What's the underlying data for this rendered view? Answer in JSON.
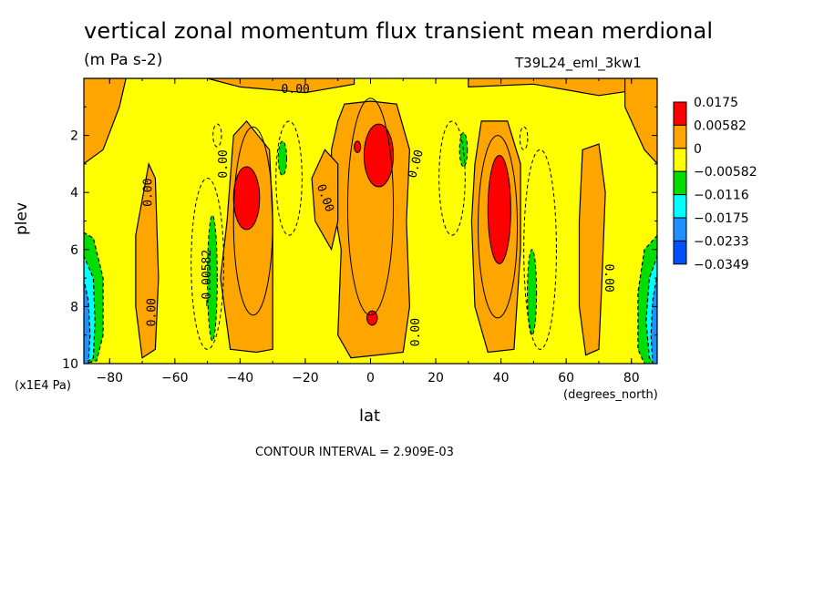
{
  "title": "vertical zonal momentum flux transient mean merdional",
  "units": "(m Pa s-2)",
  "dataset": "T39L24_eml_3kw1",
  "contour_interval_text": "CONTOUR INTERVAL = 2.909E-03",
  "chart_data": {
    "type": "heatmap",
    "xlabel": "lat",
    "xunit": "(degrees_north)",
    "ylabel": "plev",
    "yunit": "(x1E4 Pa)",
    "xlim": [
      -87.9,
      87.9
    ],
    "ylim": [
      10,
      0
    ],
    "x_ticks": [
      -80,
      -60,
      -40,
      -20,
      0,
      20,
      40,
      60,
      80
    ],
    "y_ticks": [
      2,
      4,
      6,
      8,
      10
    ],
    "legend": {
      "position": "right",
      "labels": [
        "0.0175",
        "0.00582",
        "0",
        "−0.00582",
        "−0.0116",
        "−0.0175",
        "−0.0233",
        "−0.0349"
      ],
      "colors": [
        "#ff0000",
        "#ffa500",
        "#ffff00",
        "#00dd00",
        "#00ffff",
        "#1e90ff",
        "#0050ff"
      ]
    },
    "contour_labels": [
      {
        "text": "0.00",
        "lat": -23,
        "plev": 0.4,
        "angle": 0
      },
      {
        "text": "0.00",
        "lat": -68,
        "plev": 4.0,
        "angle": -90
      },
      {
        "text": "0.00",
        "lat": -45,
        "plev": 3.0,
        "angle": -90
      },
      {
        "text": "−0.00582",
        "lat": -50,
        "plev": 7.0,
        "angle": -90
      },
      {
        "text": "0.00",
        "lat": -67,
        "plev": 8.2,
        "angle": -90
      },
      {
        "text": "0.00",
        "lat": -14,
        "plev": 4.2,
        "angle": 70
      },
      {
        "text": "0.00",
        "lat": 14,
        "plev": 3.0,
        "angle": -75
      },
      {
        "text": "0.00",
        "lat": 14,
        "plev": 8.9,
        "angle": -90
      },
      {
        "text": "0.00",
        "lat": 73,
        "plev": 7.0,
        "angle": 90
      }
    ]
  }
}
